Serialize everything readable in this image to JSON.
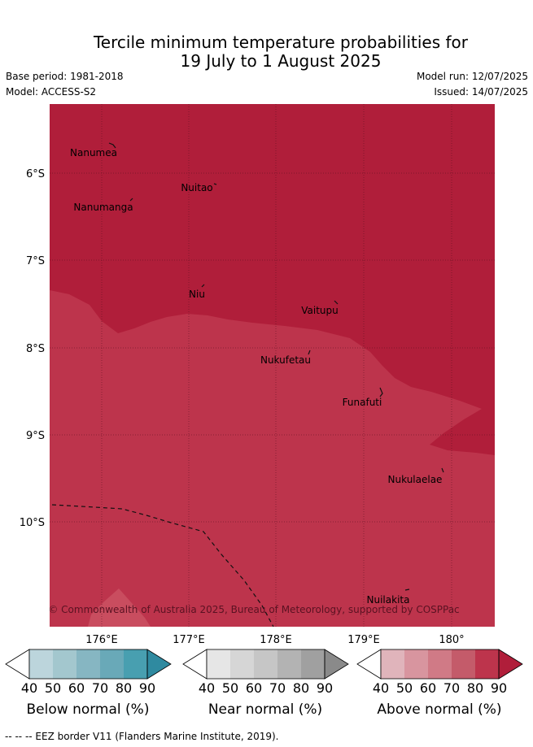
{
  "title": {
    "line1": "Tercile minimum temperature probabilities for",
    "line2": "19 July to 1 August 2025"
  },
  "meta": {
    "base_period": "Base period: 1981-2018",
    "model": "Model: ACCESS-S2",
    "model_run": "Model run: 12/07/2025",
    "issued": "Issued: 14/07/2025"
  },
  "map": {
    "lat_labels": [
      "6°S",
      "7°S",
      "8°S",
      "9°S",
      "10°S"
    ],
    "lon_labels": [
      "176°E",
      "177°E",
      "178°E",
      "179°E",
      "180°"
    ],
    "places": [
      "Nanumea",
      "Nuitao",
      "Nanumanga",
      "Niu",
      "Vaitupu",
      "Nukufetau",
      "Funafuti",
      "Nukulaelae",
      "Nuilakita"
    ],
    "copyright": "© Commonwealth of Australia 2025, Bureau of Meteorology, supported by COSPPac",
    "colors": {
      "above_90": "#b01e3a",
      "above_80": "#bd344c",
      "near_40": "#e3bcc3"
    }
  },
  "colorbars": [
    {
      "name": "Below normal (%)",
      "ticks": [
        "40",
        "50",
        "60",
        "70",
        "80",
        "90"
      ],
      "colors": [
        "#ffffff",
        "#bcd5dc",
        "#a3c7ce",
        "#86b6c2",
        "#69a9b8",
        "#489fb0",
        "#2f8aa0"
      ]
    },
    {
      "name": "Near normal (%)",
      "ticks": [
        "40",
        "50",
        "60",
        "70",
        "80",
        "90"
      ],
      "colors": [
        "#ffffff",
        "#e6e6e6",
        "#d6d6d6",
        "#c6c6c6",
        "#b3b3b3",
        "#a0a0a0",
        "#8a8a8a"
      ]
    },
    {
      "name": "Above normal (%)",
      "ticks": [
        "40",
        "50",
        "60",
        "70",
        "80",
        "90"
      ],
      "colors": [
        "#ffffff",
        "#e0b4bb",
        "#d8959f",
        "#d07a86",
        "#c45b6a",
        "#bd344c",
        "#b01e3a"
      ]
    }
  ],
  "footer": "--  --  -- EEZ border V11 (Flanders Marine Institute, 2019)."
}
